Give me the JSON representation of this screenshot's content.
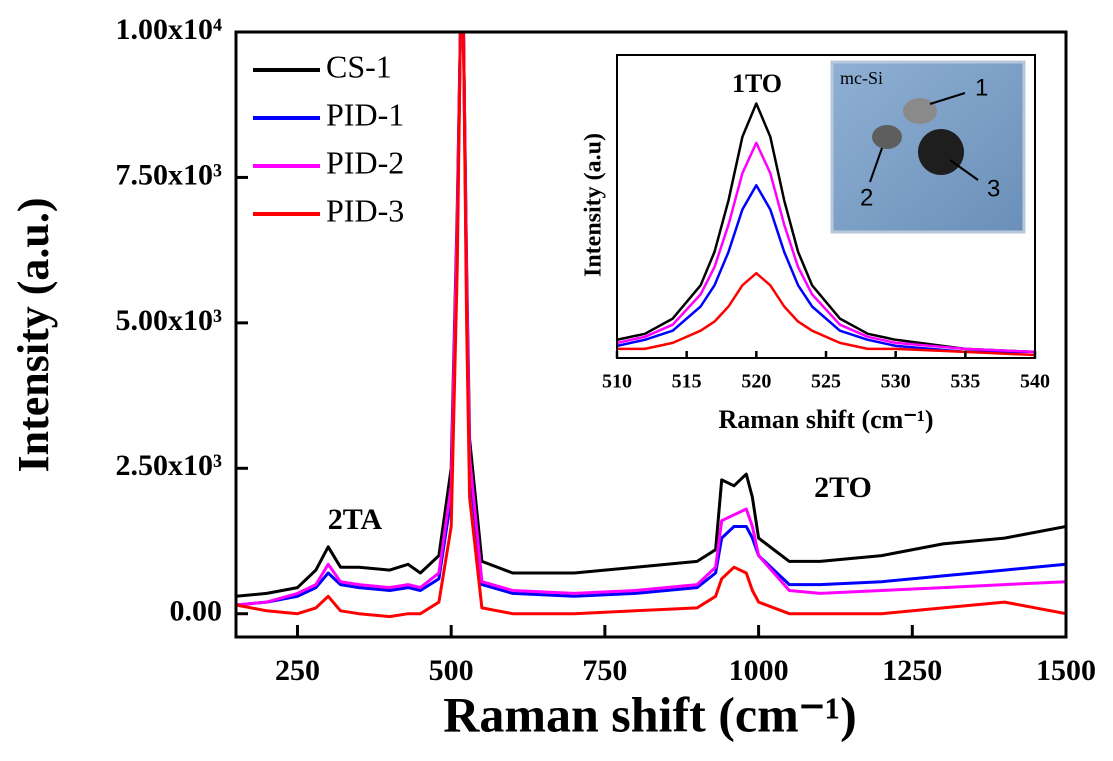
{
  "chart_data": [
    {
      "type": "line",
      "xlabel": "Raman shift (cm⁻¹)",
      "ylabel": "Intensity (a.u.)",
      "annotations": [
        "2TA",
        "2TO"
      ],
      "x": [
        150,
        200,
        250,
        280,
        300,
        320,
        350,
        400,
        430,
        450,
        480,
        500,
        510,
        515,
        520,
        525,
        530,
        550,
        600,
        700,
        800,
        900,
        930,
        940,
        960,
        980,
        990,
        1000,
        1050,
        1100,
        1200,
        1300,
        1400,
        1500
      ],
      "series": [
        {
          "name": "CS-1",
          "color": "#000000",
          "values": [
            300,
            350,
            450,
            750,
            1150,
            800,
            800,
            750,
            850,
            700,
            1000,
            2500,
            7000,
            10000,
            10000,
            6000,
            3000,
            900,
            700,
            700,
            800,
            900,
            1100,
            2300,
            2200,
            2400,
            2000,
            1300,
            900,
            900,
            1000,
            1200,
            1300,
            1500
          ]
        },
        {
          "name": "PID-1",
          "color": "#0000ff",
          "values": [
            150,
            200,
            300,
            450,
            700,
            500,
            450,
            400,
            450,
            400,
            600,
            2000,
            6500,
            10000,
            10000,
            5500,
            2500,
            500,
            350,
            300,
            350,
            450,
            700,
            1300,
            1500,
            1500,
            1300,
            1000,
            500,
            500,
            550,
            650,
            750,
            850
          ]
        },
        {
          "name": "PID-2",
          "color": "#ff00ff",
          "values": [
            150,
            200,
            350,
            500,
            850,
            550,
            500,
            450,
            500,
            450,
            700,
            2200,
            6800,
            10000,
            10000,
            5800,
            2700,
            550,
            400,
            350,
            400,
            500,
            800,
            1600,
            1700,
            1800,
            1500,
            1000,
            400,
            350,
            400,
            450,
            500,
            550
          ]
        },
        {
          "name": "PID-3",
          "color": "#ff0000",
          "values": [
            150,
            50,
            0,
            100,
            300,
            50,
            0,
            -50,
            0,
            0,
            200,
            1500,
            6000,
            10000,
            10000,
            5000,
            2000,
            100,
            0,
            0,
            50,
            100,
            300,
            600,
            800,
            700,
            400,
            200,
            0,
            0,
            0,
            100,
            200,
            0
          ]
        }
      ],
      "xlim": [
        150,
        1500
      ],
      "xticks": [
        250,
        500,
        750,
        1000,
        1250,
        1500
      ],
      "ylim": [
        -400,
        10000
      ],
      "yticks": [
        {
          "value": 0,
          "label": "0.00"
        },
        {
          "value": 2500,
          "label": "2.50x10³"
        },
        {
          "value": 5000,
          "label": "5.00x10³"
        },
        {
          "value": 7500,
          "label": "7.50x10³"
        },
        {
          "value": 10000,
          "label": "1.00x10⁴"
        }
      ],
      "legend": "upper-left"
    },
    {
      "type": "line",
      "xlabel": "Raman shift (cm⁻¹)",
      "ylabel": "Intensity (a.u)",
      "annotations": [
        "1TO"
      ],
      "image_labels": [
        "mc-Si",
        "1",
        "2",
        "3"
      ],
      "x": [
        510,
        512,
        514,
        516,
        517,
        518,
        519,
        520,
        521,
        522,
        523,
        524,
        526,
        528,
        530,
        535,
        540
      ],
      "series": [
        {
          "name": "CS-1",
          "color": "#000000",
          "values": [
            0.06,
            0.08,
            0.13,
            0.24,
            0.35,
            0.52,
            0.73,
            0.84,
            0.73,
            0.52,
            0.35,
            0.24,
            0.13,
            0.08,
            0.06,
            0.03,
            0.02
          ]
        },
        {
          "name": "PID-1",
          "color": "#0000ff",
          "values": [
            0.04,
            0.06,
            0.09,
            0.17,
            0.24,
            0.35,
            0.49,
            0.57,
            0.49,
            0.35,
            0.24,
            0.17,
            0.09,
            0.06,
            0.04,
            0.02,
            0.02
          ]
        },
        {
          "name": "PID-2",
          "color": "#ff00ff",
          "values": [
            0.05,
            0.07,
            0.11,
            0.21,
            0.3,
            0.44,
            0.61,
            0.71,
            0.61,
            0.44,
            0.3,
            0.21,
            0.11,
            0.07,
            0.05,
            0.03,
            0.02
          ]
        },
        {
          "name": "PID-3",
          "color": "#ff0000",
          "values": [
            0.03,
            0.03,
            0.05,
            0.09,
            0.12,
            0.17,
            0.24,
            0.28,
            0.24,
            0.17,
            0.12,
            0.09,
            0.05,
            0.03,
            0.03,
            0.02,
            0.01
          ]
        }
      ],
      "xlim": [
        510,
        540
      ],
      "xticks": [
        510,
        515,
        520,
        525,
        530,
        535,
        540
      ],
      "ylim": [
        0,
        1
      ]
    }
  ]
}
